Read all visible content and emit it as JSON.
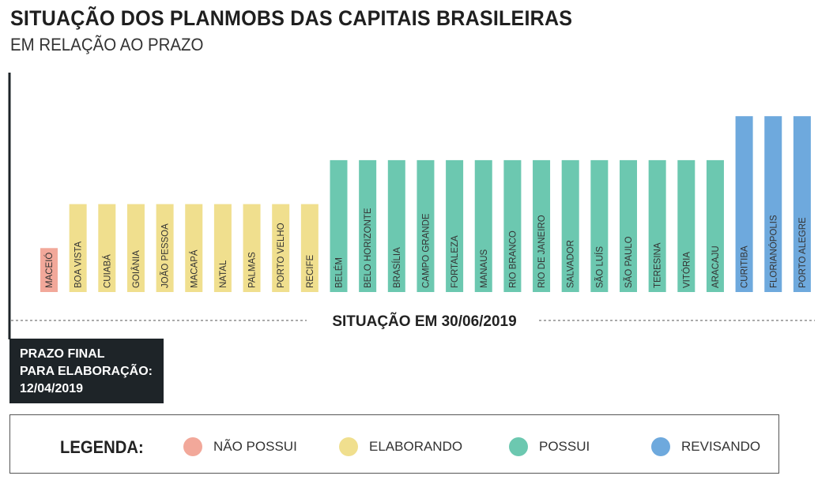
{
  "title": "SITUAÇÃO DOS PLANMOBS DAS CAPITAIS BRASILEIRAS",
  "subtitle": "EM RELAÇÃO AO PRAZO",
  "situation_label": "SITUAÇÃO EM 30/06/2019",
  "deadline": {
    "line1": " PRAZO FINAL",
    "line2": "PARA ELABORAÇÃO:",
    "line3": "12/04/2019"
  },
  "legend": {
    "title": "LEGENDA:",
    "items": [
      {
        "key": "nao_possui",
        "label": "NÃO POSSUI",
        "color": "#f2a89a"
      },
      {
        "key": "elaborando",
        "label": "ELABORANDO",
        "color": "#f0df8e"
      },
      {
        "key": "possui",
        "label": "POSSUI",
        "color": "#6cc8b0"
      },
      {
        "key": "revisando",
        "label": "REVISANDO",
        "color": "#6ea9dd"
      }
    ]
  },
  "chart_data": {
    "type": "bar",
    "title": "SITUAÇÃO DOS PLANMOBS DAS CAPITAIS BRASILEIRAS",
    "subtitle": "EM RELAÇÃO AO PRAZO",
    "xlabel": "",
    "ylabel": "",
    "status_levels": {
      "nao_possui": 1,
      "elaborando": 2,
      "possui": 3,
      "revisando": 4
    },
    "ylim": [
      0,
      4
    ],
    "categories": [
      "MACEIÓ",
      "BOA VISTA",
      "CUIABÁ",
      "GOIÂNIA",
      "JOÃO PESSOA",
      "MACAPÁ",
      "NATAL",
      "PALMAS",
      "PORTO VELHO",
      "RECIFE",
      "BELÉM",
      "BELO HORIZONTE",
      "BRASÍLIA",
      "CAMPO GRANDE",
      "FORTALEZA",
      "MANAUS",
      "RIO BRANCO",
      "RIO DE JANEIRO",
      "SALVADOR",
      "SÃO LUÍS",
      "SÃO PAULO",
      "TERESINA",
      "VITÓRIA",
      "ARACAJU",
      "CURITIBA",
      "FLORIANÓPOLIS",
      "PORTO ALEGRE"
    ],
    "status": [
      "nao_possui",
      "elaborando",
      "elaborando",
      "elaborando",
      "elaborando",
      "elaborando",
      "elaborando",
      "elaborando",
      "elaborando",
      "elaborando",
      "possui",
      "possui",
      "possui",
      "possui",
      "possui",
      "possui",
      "possui",
      "possui",
      "possui",
      "possui",
      "possui",
      "possui",
      "possui",
      "possui",
      "revisando",
      "revisando",
      "revisando"
    ],
    "values": [
      1,
      2,
      2,
      2,
      2,
      2,
      2,
      2,
      2,
      2,
      3,
      3,
      3,
      3,
      3,
      3,
      3,
      3,
      3,
      3,
      3,
      3,
      3,
      3,
      4,
      4,
      4
    ]
  }
}
